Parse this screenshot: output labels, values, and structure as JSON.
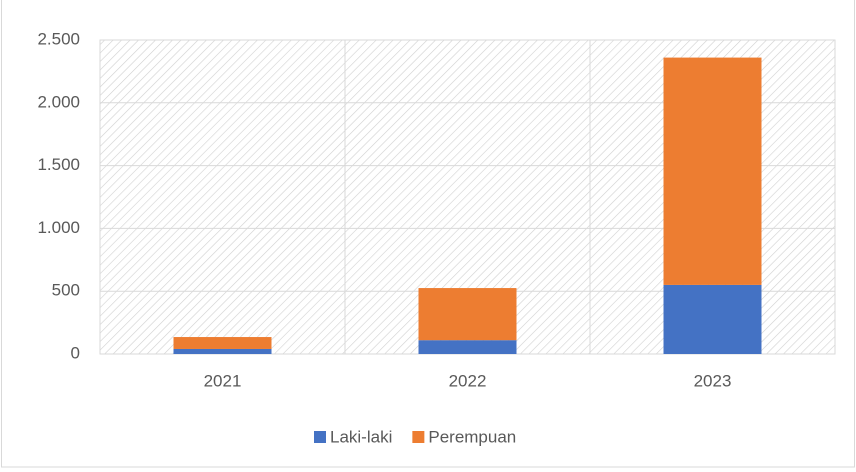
{
  "chart_data": {
    "type": "stacked_bar",
    "categories": [
      "2021",
      "2022",
      "2023"
    ],
    "series": [
      {
        "name": "Laki-laki",
        "color": "#4472c4",
        "values": [
          40,
          110,
          550
        ]
      },
      {
        "name": "Perempuan",
        "color": "#ed7d31",
        "values": [
          95,
          415,
          1810
        ]
      }
    ],
    "ylim": [
      0,
      2500
    ],
    "yticks": [
      0,
      500,
      {
        "value": 1000,
        "label": "1.000"
      },
      {
        "value": 1500,
        "label": "1.500"
      },
      {
        "value": 2000,
        "label": "2.000"
      },
      {
        "value": 2500,
        "label": "2.500"
      }
    ],
    "grid": true,
    "legend": "bottom"
  }
}
